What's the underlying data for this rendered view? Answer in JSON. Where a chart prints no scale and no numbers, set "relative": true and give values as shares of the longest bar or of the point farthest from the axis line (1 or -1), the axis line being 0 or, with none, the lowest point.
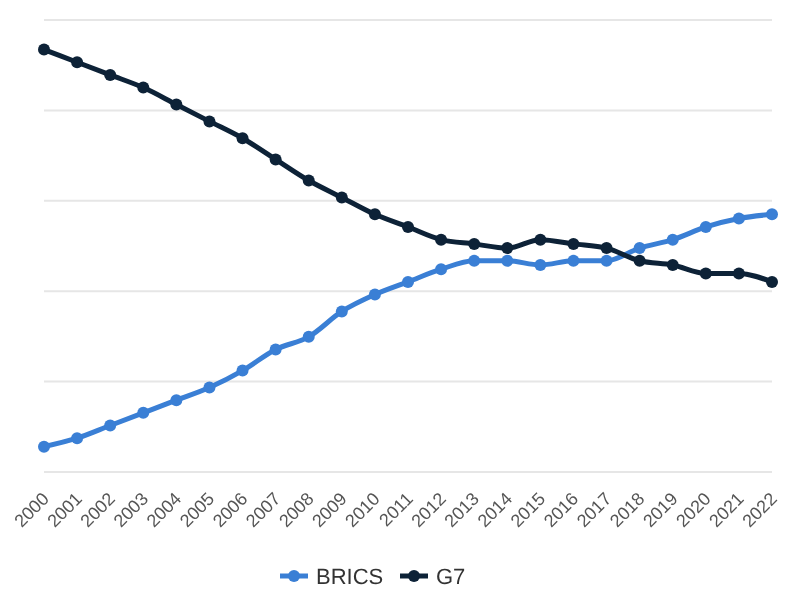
{
  "chart_data": {
    "type": "line",
    "relative": true,
    "categories": [
      "2000",
      "2001",
      "2002",
      "2003",
      "2004",
      "2005",
      "2006",
      "2007",
      "2008",
      "2009",
      "2010",
      "2011",
      "2012",
      "2013",
      "2014",
      "2015",
      "2016",
      "2017",
      "2018",
      "2019",
      "2020",
      "2021",
      "2022"
    ],
    "series": [
      {
        "name": "BRICS",
        "color": "#3a7fd5",
        "values": [
          0.06,
          0.08,
          0.11,
          0.14,
          0.17,
          0.2,
          0.24,
          0.29,
          0.32,
          0.38,
          0.42,
          0.45,
          0.48,
          0.5,
          0.5,
          0.49,
          0.5,
          0.5,
          0.53,
          0.55,
          0.58,
          0.6,
          0.61
        ]
      },
      {
        "name": "G7",
        "color": "#0d2237",
        "values": [
          1,
          0.97,
          0.94,
          0.91,
          0.87,
          0.83,
          0.79,
          0.74,
          0.69,
          0.65,
          0.61,
          0.58,
          0.55,
          0.54,
          0.53,
          0.55,
          0.54,
          0.53,
          0.5,
          0.49,
          0.47,
          0.47,
          0.45
        ]
      }
    ],
    "grid": "y",
    "marker": "circle",
    "line_style": "solid",
    "legend": "bottom"
  }
}
